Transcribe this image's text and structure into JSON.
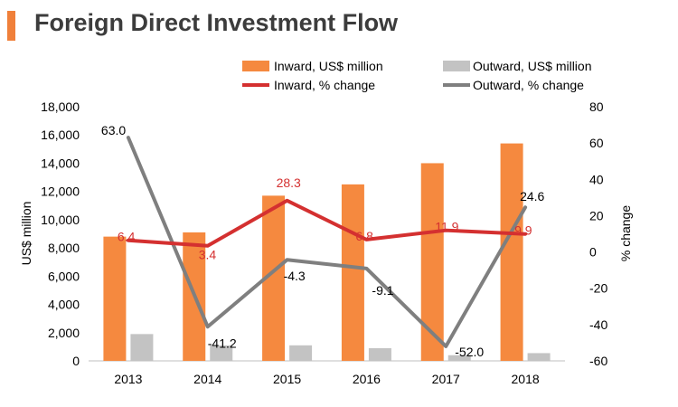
{
  "title": "Foreign Direct Investment Flow",
  "chart_data": {
    "type": "bar",
    "title": "Foreign Direct Investment Flow",
    "categories": [
      "2013",
      "2014",
      "2015",
      "2016",
      "2017",
      "2018"
    ],
    "series": [
      {
        "name": "Inward, US$ million",
        "kind": "bar",
        "axis": "left",
        "color": "#f5893f",
        "values": [
          8800,
          9100,
          11700,
          12500,
          14000,
          15400
        ]
      },
      {
        "name": "Outward, US$ million",
        "kind": "bar",
        "axis": "left",
        "color": "#c3c3c3",
        "values": [
          1900,
          1100,
          1100,
          900,
          400,
          550
        ]
      },
      {
        "name": "Inward, % change",
        "kind": "line",
        "axis": "right",
        "color": "#d43030",
        "values": [
          6.4,
          3.4,
          28.3,
          6.8,
          11.9,
          9.9
        ],
        "labels": [
          "6.4",
          "3.4",
          "28.3",
          "6.8",
          "11.9",
          "9.9"
        ]
      },
      {
        "name": "Outward, % change",
        "kind": "line",
        "axis": "right",
        "color": "#7f7f7f",
        "values": [
          63.0,
          -41.2,
          -4.3,
          -9.1,
          -52.0,
          24.6
        ],
        "labels": [
          "63.0",
          "-41.2",
          "-4.3",
          "-9.1",
          "-52.0",
          "24.6"
        ]
      }
    ],
    "ylabel": "US$ million",
    "ylim": [
      0,
      18000
    ],
    "yticks": [
      "0",
      "2,000",
      "4,000",
      "6,000",
      "8,000",
      "10,000",
      "12,000",
      "14,000",
      "16,000",
      "18,000"
    ],
    "y2label": "% change",
    "y2lim": [
      -60,
      80
    ],
    "y2ticks": [
      "-60",
      "-40",
      "-20",
      "0",
      "20",
      "40",
      "60",
      "80"
    ],
    "legend_position": "top-right",
    "grid": false
  }
}
